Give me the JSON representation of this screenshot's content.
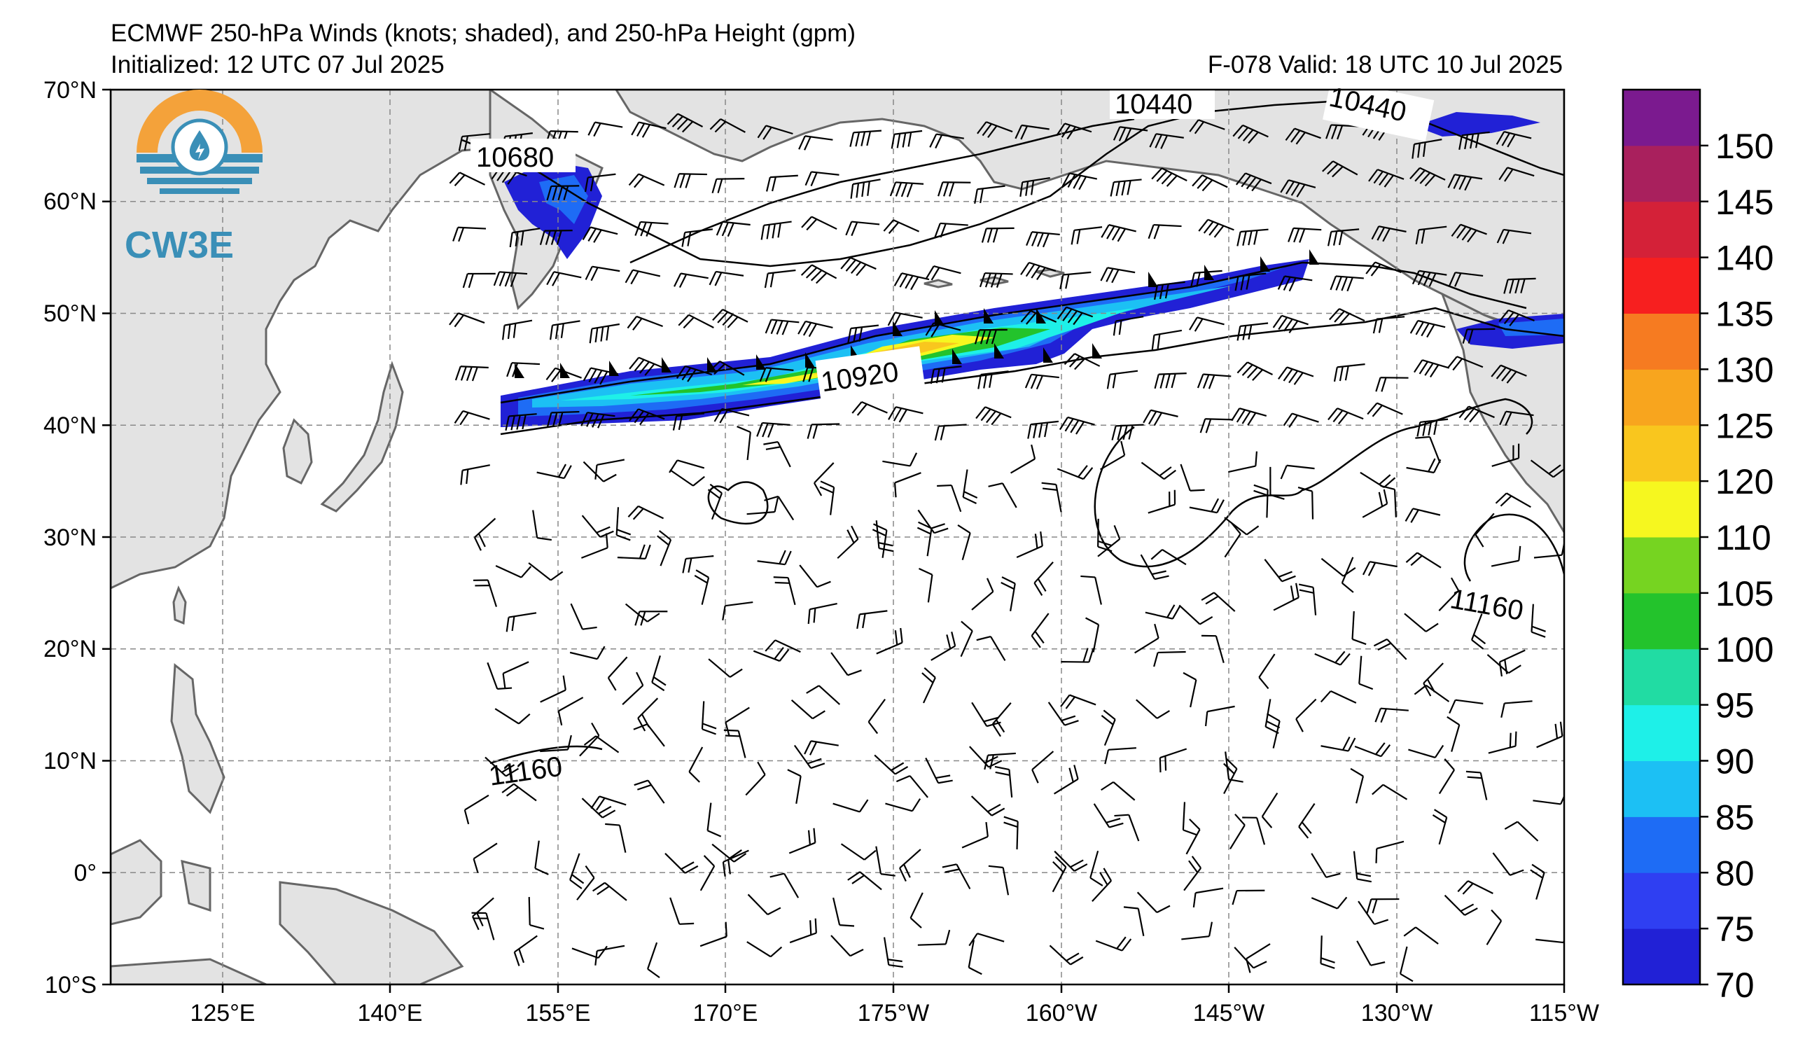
{
  "header": {
    "title": "ECMWF 250-hPa Winds (knots; shaded), and 250-hPa Height (gpm)",
    "initialized": "Initialized: 12 UTC 07 Jul 2025",
    "valid": "F-078  Valid: 18 UTC 10 Jul 2025"
  },
  "logo": {
    "text": "CW3E",
    "icon": "water-drop-sun-icon"
  },
  "axes": {
    "lat_labels": [
      "70°N",
      "60°N",
      "50°N",
      "40°N",
      "30°N",
      "20°N",
      "10°N",
      "0°",
      "10°S"
    ],
    "lon_labels": [
      "125°E",
      "140°E",
      "155°E",
      "170°E",
      "175°W",
      "160°W",
      "145°W",
      "130°W",
      "115°W"
    ]
  },
  "contour_labels": [
    "10440",
    "10440",
    "10680",
    "10920",
    "11160",
    "11160"
  ],
  "colorbar": {
    "ticks": [
      "70",
      "75",
      "80",
      "85",
      "90",
      "95",
      "100",
      "105",
      "110",
      "120",
      "125",
      "130",
      "135",
      "140",
      "145",
      "150"
    ],
    "colors": [
      "#2121d6",
      "#2f3ff2",
      "#1e6cf5",
      "#1cc0f4",
      "#1ef0e8",
      "#21dca3",
      "#23c32c",
      "#76d421",
      "#f6f71f",
      "#f9c61e",
      "#f8a51e",
      "#f67b21",
      "#f71f1f",
      "#d42138",
      "#a9205d",
      "#7b1a8f"
    ]
  },
  "map": {
    "land_color": "#e3e3e3",
    "coast_color": "#666666",
    "grid_color": "#888888",
    "jet_colors": {
      "outer": "#2121d6",
      "blue": "#1e6cf5",
      "cyan": "#1cc0f4",
      "aqua": "#1ef0e8",
      "green": "#23c32c",
      "yellow": "#f6f71f",
      "orange": "#f9c61e"
    }
  }
}
